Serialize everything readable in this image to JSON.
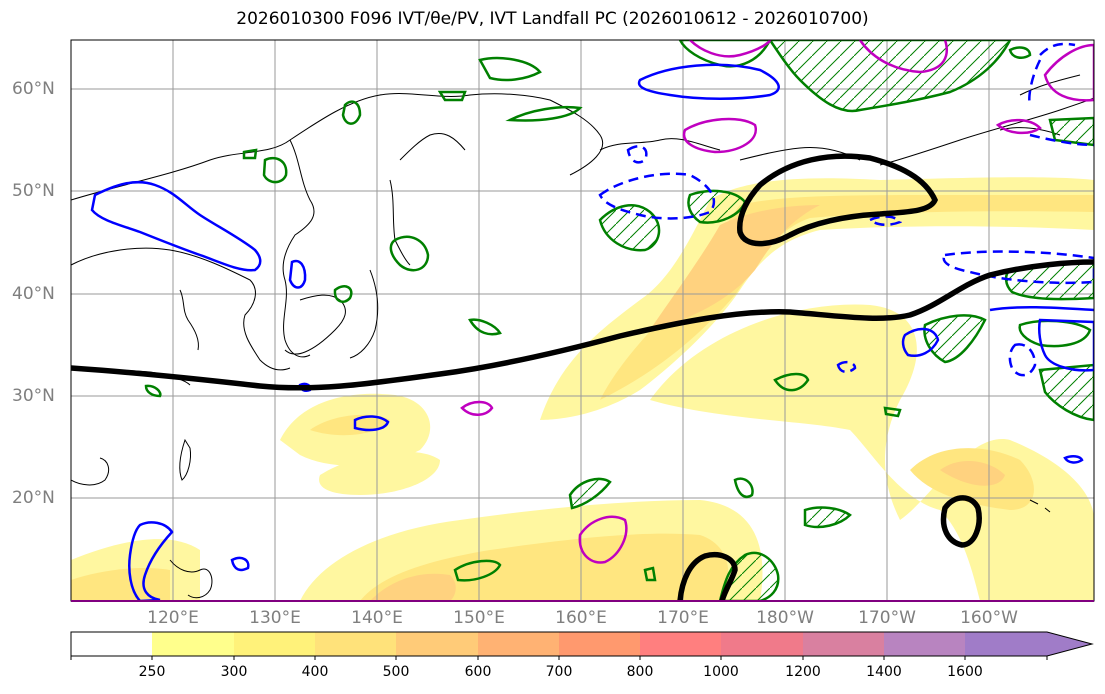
{
  "title": "2026010300 F096 IVT/θe/PV, IVT Landfall PC (2026010612 - 2026010700)",
  "lat_labels": [
    "60°N",
    "50°N",
    "40°N",
    "30°N",
    "20°N"
  ],
  "lon_labels": [
    "120°E",
    "130°E",
    "140°E",
    "150°E",
    "160°E",
    "170°E",
    "180°W",
    "170°W",
    "160°W"
  ],
  "colorbar": {
    "levels": [
      "250",
      "300",
      "400",
      "500",
      "600",
      "700",
      "800",
      "1000",
      "1200",
      "1400",
      "1600"
    ],
    "colors": [
      "#ffffff",
      "#ffff8c",
      "#fff27a",
      "#ffe27a",
      "#ffcb78",
      "#ffb273",
      "#ff996e",
      "#ff7f7f",
      "#f07a8a",
      "#d980a0",
      "#b884c0",
      "#a07cc8"
    ]
  },
  "colors": {
    "ivt_fill": [
      "#fff7a0",
      "#ffe680",
      "#ffd27f"
    ],
    "theta_contour": "#008000",
    "pv_contour": "#0000ff",
    "magenta_contour": "#c000c0",
    "jet_line": "#000000"
  }
}
